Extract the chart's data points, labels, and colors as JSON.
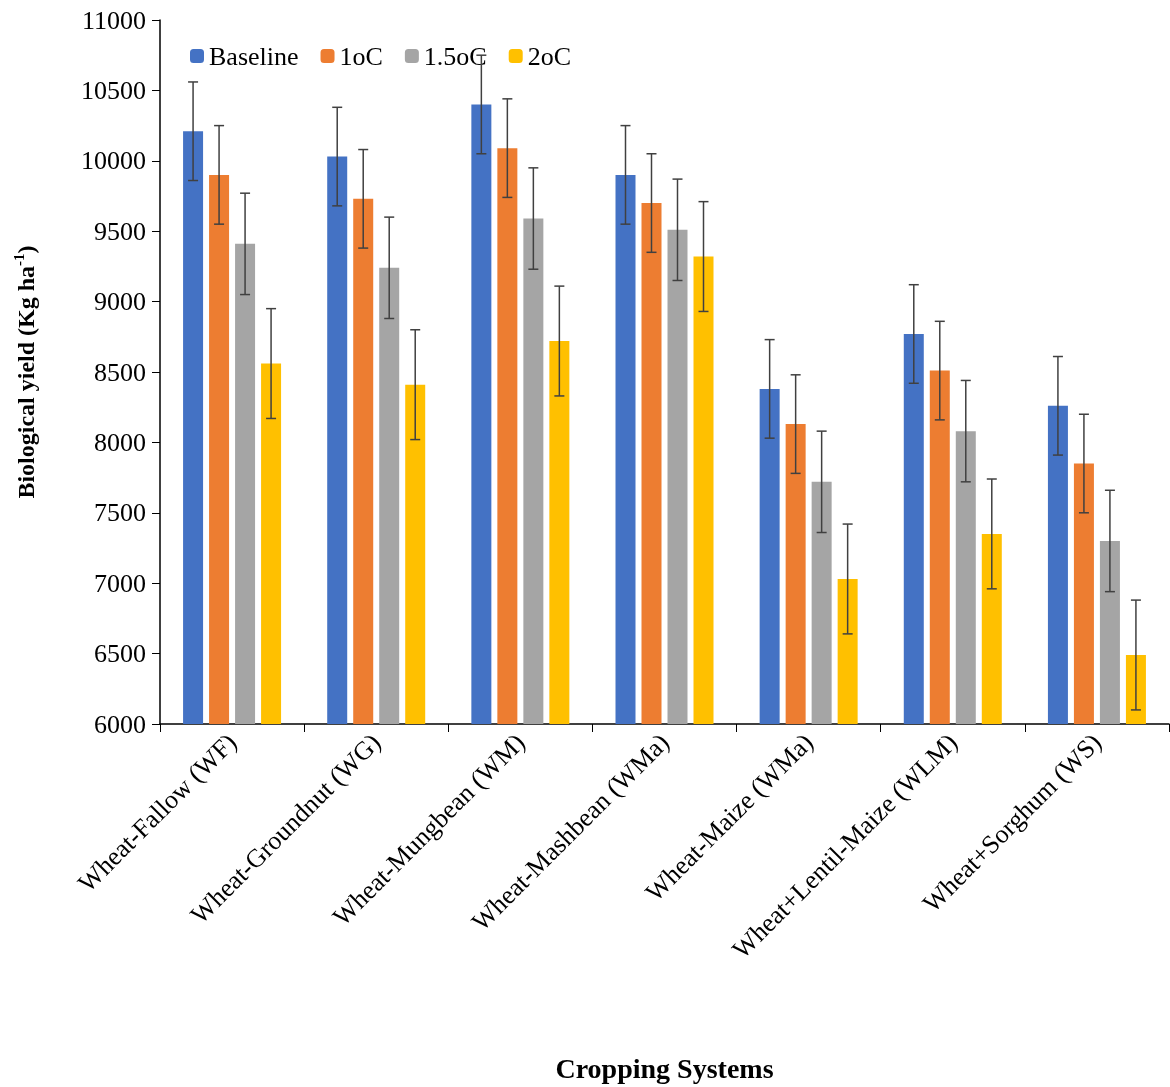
{
  "chart_data": {
    "type": "bar",
    "xlabel": "Cropping Systems",
    "ylabel": "Biological yield (Kg ha$^{-1}$)",
    "categories": [
      "Wheat-Fallow (WF)",
      "Wheat-Groundnut (WG)",
      "Wheat-Mungbean (WM)",
      "Wheat-Mashbean (WMa)",
      "Wheat-Maize (WMa)",
      "Wheat+Lentil-Maize (WLM)",
      "Wheat+Sorghum (WS)"
    ],
    "series": [
      {
        "name": "Baseline",
        "color": "#4472c4",
        "values": [
          10210,
          10030,
          10400,
          9900,
          8380,
          8770,
          8260
        ],
        "errors": [
          350,
          350,
          350,
          350,
          350,
          350,
          350
        ]
      },
      {
        "name": "1oC",
        "color": "#ed7d31",
        "values": [
          9900,
          9730,
          10090,
          9700,
          8130,
          8510,
          7850
        ],
        "errors": [
          350,
          350,
          350,
          350,
          350,
          350,
          350
        ]
      },
      {
        "name": "1.5oC",
        "color": "#a5a5a5",
        "values": [
          9410,
          9240,
          9590,
          9510,
          7720,
          8080,
          7300
        ],
        "errors": [
          360,
          360,
          360,
          360,
          360,
          360,
          360
        ]
      },
      {
        "name": "2oC",
        "color": "#ffc000",
        "values": [
          8560,
          8410,
          8720,
          9320,
          7030,
          7350,
          6490
        ],
        "errors": [
          390,
          390,
          390,
          390,
          390,
          390,
          390
        ]
      }
    ],
    "ylim": [
      6000,
      11000
    ],
    "yticks": [
      6000,
      6500,
      7000,
      7500,
      8000,
      8500,
      9000,
      9500,
      10000,
      10500,
      11000
    ],
    "grid": false,
    "legend": "top left"
  }
}
